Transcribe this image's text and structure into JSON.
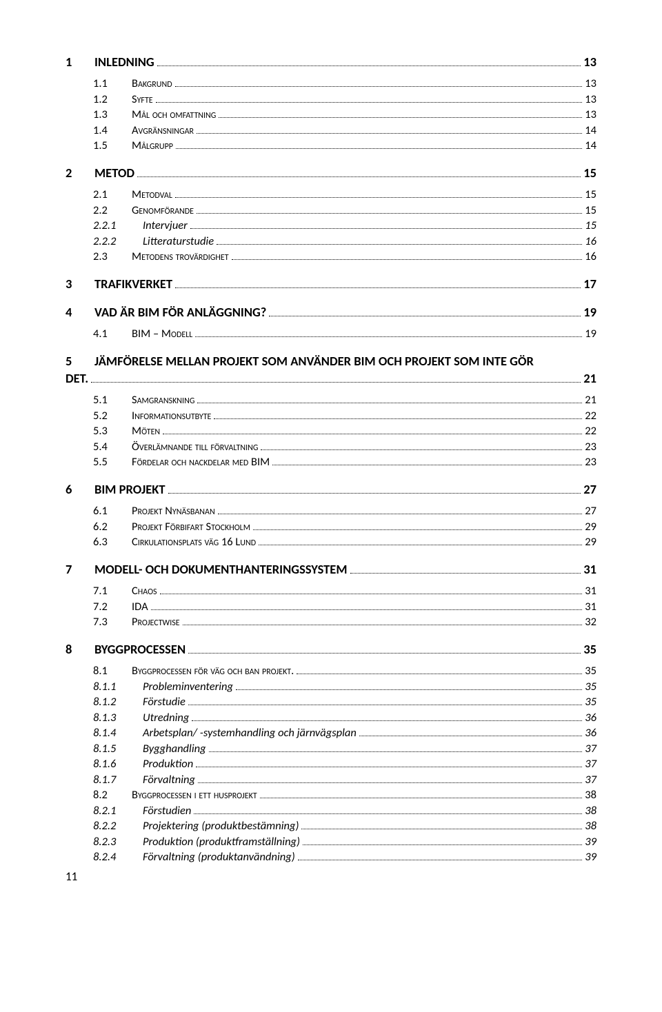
{
  "page_number": "11",
  "toc": [
    {
      "level": 1,
      "num": "1",
      "title": "INLEDNING",
      "page": "13"
    },
    {
      "level": 2,
      "num": "1.1",
      "title": "Bakgrund",
      "page": "13"
    },
    {
      "level": 2,
      "num": "1.2",
      "title": "Syfte",
      "page": "13"
    },
    {
      "level": 2,
      "num": "1.3",
      "title": "Mål och omfattning",
      "page": "13"
    },
    {
      "level": 2,
      "num": "1.4",
      "title": "Avgränsningar",
      "page": "14"
    },
    {
      "level": 2,
      "num": "1.5",
      "title": "Målgrupp",
      "page": "14"
    },
    {
      "level": 1,
      "num": "2",
      "title": "METOD",
      "page": "15"
    },
    {
      "level": 2,
      "num": "2.1",
      "title": "Metodval",
      "page": "15"
    },
    {
      "level": 2,
      "num": "2.2",
      "title": "Genomförande",
      "page": "15"
    },
    {
      "level": 3,
      "num": "2.2.1",
      "title": "Intervjuer",
      "page": "15"
    },
    {
      "level": 3,
      "num": "2.2.2",
      "title": "Litteraturstudie",
      "page": "16"
    },
    {
      "level": 2,
      "num": "2.3",
      "title": "Metodens trovärdighet",
      "page": "16"
    },
    {
      "level": 1,
      "num": "3",
      "title": "TRAFIKVERKET",
      "page": "17"
    },
    {
      "level": 1,
      "num": "4",
      "title": "VAD ÄR BIM FÖR ANLÄGGNING?",
      "page": "19"
    },
    {
      "level": 2,
      "num": "4.1",
      "title": "BIM – Modell",
      "page": "19"
    },
    {
      "level": 1,
      "num": "5",
      "title": "JÄMFÖRELSE MELLAN PROJEKT SOM ANVÄNDER BIM OCH PROJEKT SOM INTE GÖR DET.",
      "page": "21"
    },
    {
      "level": 2,
      "num": "5.1",
      "title": "Samgranskning",
      "page": "21"
    },
    {
      "level": 2,
      "num": "5.2",
      "title": "Informationsutbyte",
      "page": "22"
    },
    {
      "level": 2,
      "num": "5.3",
      "title": "Möten",
      "page": "22"
    },
    {
      "level": 2,
      "num": "5.4",
      "title": "Överlämnande till förvaltning",
      "page": "23"
    },
    {
      "level": 2,
      "num": "5.5",
      "title": "Fördelar och nackdelar med BIM",
      "page": "23"
    },
    {
      "level": 1,
      "num": "6",
      "title": "BIM PROJEKT",
      "page": "27"
    },
    {
      "level": 2,
      "num": "6.1",
      "title": "Projekt Nynäsbanan",
      "page": "27"
    },
    {
      "level": 2,
      "num": "6.2",
      "title": "Projekt Förbifart Stockholm",
      "page": "29"
    },
    {
      "level": 2,
      "num": "6.3",
      "title": "Cirkulationsplats väg 16 Lund",
      "page": "29"
    },
    {
      "level": 1,
      "num": "7",
      "title": "MODELL- OCH DOKUMENTHANTERINGSSYSTEM",
      "page": "31"
    },
    {
      "level": 2,
      "num": "7.1",
      "title": "Chaos",
      "page": "31"
    },
    {
      "level": 2,
      "num": "7.2",
      "title": "IDA",
      "page": "31"
    },
    {
      "level": 2,
      "num": "7.3",
      "title": "Projectwise",
      "page": "32"
    },
    {
      "level": 1,
      "num": "8",
      "title": "BYGGPROCESSEN",
      "page": "35"
    },
    {
      "level": 2,
      "num": "8.1",
      "title": "Byggprocessen för väg och ban projekt.",
      "page": "35"
    },
    {
      "level": 3,
      "num": "8.1.1",
      "title": "Probleminventering",
      "page": "35"
    },
    {
      "level": 3,
      "num": "8.1.2",
      "title": "Förstudie",
      "page": "35"
    },
    {
      "level": 3,
      "num": "8.1.3",
      "title": "Utredning",
      "page": "36"
    },
    {
      "level": 3,
      "num": "8.1.4",
      "title": "Arbetsplan/ -systemhandling och järnvägsplan",
      "page": "36"
    },
    {
      "level": 3,
      "num": "8.1.5",
      "title": "Bygghandling",
      "page": "37"
    },
    {
      "level": 3,
      "num": "8.1.6",
      "title": "Produktion",
      "page": "37"
    },
    {
      "level": 3,
      "num": "8.1.7",
      "title": "Förvaltning",
      "page": "37"
    },
    {
      "level": 2,
      "num": "8.2",
      "title": "Byggprocessen i ett husprojekt",
      "page": "38"
    },
    {
      "level": 3,
      "num": "8.2.1",
      "title": "Förstudien",
      "page": "38"
    },
    {
      "level": 3,
      "num": "8.2.2",
      "title": "Projektering (produktbestämning)",
      "page": "38"
    },
    {
      "level": 3,
      "num": "8.2.3",
      "title": "Produktion (produktframställning)",
      "page": "39"
    },
    {
      "level": 3,
      "num": "8.2.4",
      "title": "Förvaltning (produktanvändning)",
      "page": "39"
    }
  ]
}
